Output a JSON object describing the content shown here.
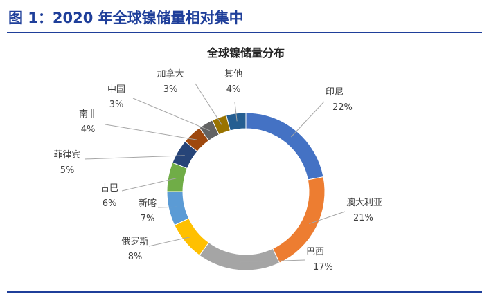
{
  "figure": {
    "title": "图 1：2020 年全球镍储量相对集中"
  },
  "chart_data": {
    "type": "pie",
    "variant": "doughnut",
    "title": "全球镍储量分布",
    "unit": "%",
    "legend": "none",
    "slices": [
      {
        "name": "印尼",
        "value": 22,
        "label": "22%",
        "color": "#4472c4"
      },
      {
        "name": "澳大利亚",
        "value": 21,
        "label": "21%",
        "color": "#ed7d31"
      },
      {
        "name": "巴西",
        "value": 17,
        "label": "17%",
        "color": "#a5a5a5"
      },
      {
        "name": "俄罗斯",
        "value": 8,
        "label": "8%",
        "color": "#ffc000"
      },
      {
        "name": "新喀",
        "value": 7,
        "label": "7%",
        "color": "#5b9bd5"
      },
      {
        "name": "古巴",
        "value": 6,
        "label": "6%",
        "color": "#70ad47"
      },
      {
        "name": "菲律宾",
        "value": 5,
        "label": "5%",
        "color": "#264478"
      },
      {
        "name": "南非",
        "value": 4,
        "label": "4%",
        "color": "#9e480e"
      },
      {
        "name": "中国",
        "value": 3,
        "label": "3%",
        "color": "#636363"
      },
      {
        "name": "加拿大",
        "value": 3,
        "label": "3%",
        "color": "#997300"
      },
      {
        "name": "其他",
        "value": 4,
        "label": "4%",
        "color": "#255e91"
      }
    ]
  }
}
